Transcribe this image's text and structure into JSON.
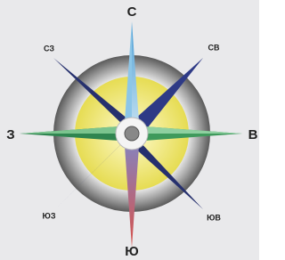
{
  "labels": {
    "north": "С",
    "northeast": "СВ",
    "east": "В",
    "southeast": "ЮВ",
    "south": "Ю",
    "southwest": "ЮЗ",
    "west": "З",
    "northwest": "СЗ"
  }
}
